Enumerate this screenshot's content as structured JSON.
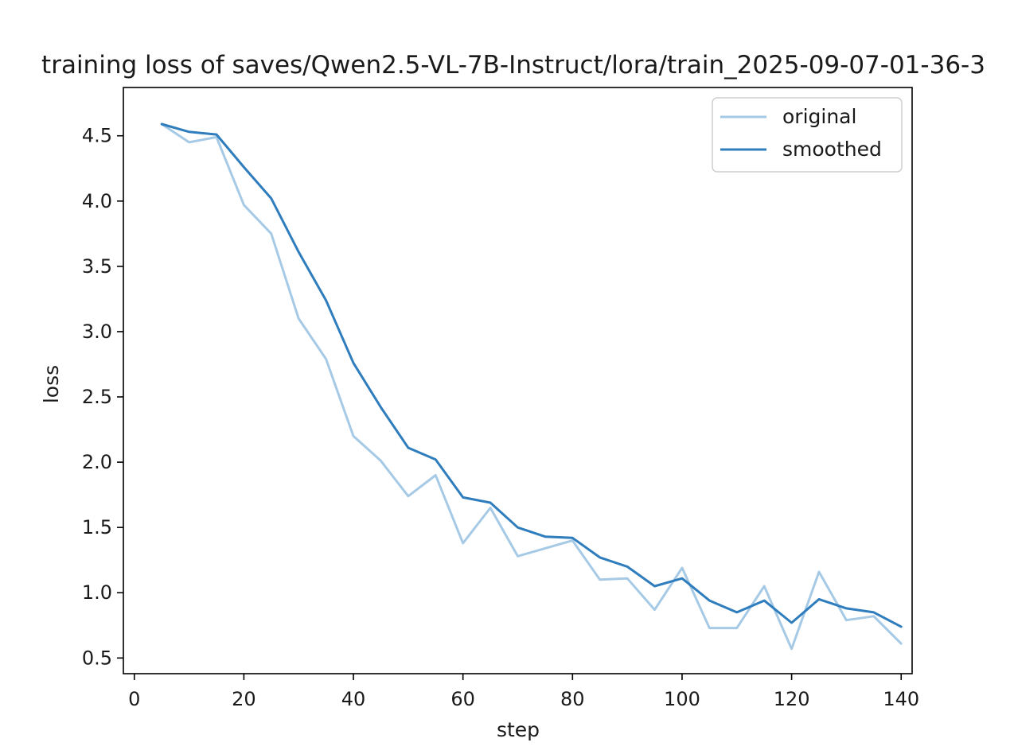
{
  "chart_data": {
    "type": "line",
    "title": "training loss of saves/Qwen2.5-VL-7B-Instruct/lora/train_2025-09-07-01-36-3",
    "xlabel": "step",
    "ylabel": "loss",
    "xlim": [
      -2,
      142
    ],
    "ylim": [
      0.38,
      4.87
    ],
    "xticks": [
      0,
      20,
      40,
      60,
      80,
      100,
      120,
      140
    ],
    "yticks": [
      0.5,
      1.0,
      1.5,
      2.0,
      2.5,
      3.0,
      3.5,
      4.0,
      4.5
    ],
    "x": [
      5,
      10,
      15,
      20,
      25,
      30,
      35,
      40,
      45,
      50,
      55,
      60,
      65,
      70,
      75,
      80,
      85,
      90,
      95,
      100,
      105,
      110,
      115,
      120,
      125,
      130,
      135,
      140
    ],
    "series": [
      {
        "name": "original",
        "color": "#a6cae6",
        "values": [
          4.59,
          4.45,
          4.49,
          3.97,
          3.75,
          3.1,
          2.79,
          2.2,
          2.01,
          1.74,
          1.9,
          1.38,
          1.65,
          1.28,
          1.34,
          1.4,
          1.1,
          1.11,
          0.87,
          1.19,
          0.73,
          0.73,
          1.05,
          0.57,
          1.16,
          0.79,
          0.82,
          0.61
        ]
      },
      {
        "name": "smoothed",
        "color": "#2f7dbd",
        "values": [
          4.59,
          4.53,
          4.51,
          4.26,
          4.02,
          3.61,
          3.24,
          2.76,
          2.42,
          2.11,
          2.02,
          1.73,
          1.69,
          1.5,
          1.43,
          1.42,
          1.27,
          1.2,
          1.05,
          1.11,
          0.94,
          0.85,
          0.94,
          0.77,
          0.95,
          0.88,
          0.85,
          0.74
        ]
      }
    ],
    "legend_position": "top-right",
    "grid": false
  }
}
